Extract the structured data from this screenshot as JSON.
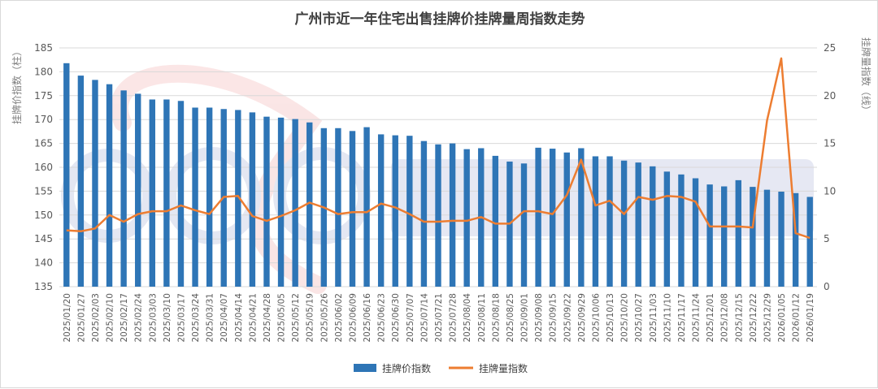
{
  "chart_data": {
    "type": "bar+line",
    "title": "广州市近一年住宅出售挂牌价挂牌量周指数走势",
    "ylabel_left": "挂牌价指数（柱）",
    "ylabel_right": "挂牌量指数（线）",
    "ylim_left": [
      135,
      185
    ],
    "ylim_right": [
      0,
      25
    ],
    "yticks_left": [
      "135",
      "140",
      "145",
      "150",
      "155",
      "160",
      "165",
      "170",
      "175",
      "180",
      "185"
    ],
    "yticks_right": [
      "0",
      "5",
      "10",
      "15",
      "20",
      "25"
    ],
    "grid": true,
    "legend_position": "bottom",
    "categories": [
      "2025/01/20",
      "2025/01/27",
      "2025/02/03",
      "2025/02/10",
      "2025/02/17",
      "2025/02/24",
      "2025/03/03",
      "2025/03/10",
      "2025/03/17",
      "2025/03/24",
      "2025/03/31",
      "2025/04/07",
      "2025/04/14",
      "2025/04/21",
      "2025/04/28",
      "2025/05/05",
      "2025/05/12",
      "2025/05/19",
      "2025/05/26",
      "2025/06/02",
      "2025/06/09",
      "2025/06/16",
      "2025/06/23",
      "2025/06/30",
      "2025/07/07",
      "2025/07/14",
      "2025/07/21",
      "2025/07/28",
      "2025/08/04",
      "2025/08/11",
      "2025/08/18",
      "2025/08/25",
      "2025/09/01",
      "2025/09/08",
      "2025/09/15",
      "2025/09/22",
      "2025/09/29",
      "2025/10/06",
      "2025/10/13",
      "2025/10/20",
      "2025/10/27",
      "2025/11/03",
      "2025/11/10",
      "2025/11/17",
      "2025/11/24",
      "2025/12/01",
      "2025/12/08",
      "2025/12/15",
      "2025/12/22",
      "2025/12/29",
      "2026/01/05",
      "2026/01/12",
      "2026/01/19"
    ],
    "series": [
      {
        "name": "挂牌价指数",
        "kind": "bar",
        "axis": "left",
        "color": "#2e75b6",
        "values": [
          181.8,
          179.2,
          178.3,
          177.4,
          176.1,
          175.4,
          174.2,
          174.2,
          173.9,
          172.5,
          172.5,
          172.2,
          172.0,
          171.5,
          170.6,
          170.4,
          170.1,
          169.4,
          168.2,
          168.2,
          167.6,
          168.4,
          166.9,
          166.7,
          166.6,
          165.5,
          164.8,
          165.0,
          163.8,
          164.0,
          162.4,
          161.2,
          160.8,
          164.1,
          163.9,
          163.1,
          164.0,
          162.3,
          162.3,
          161.4,
          161.0,
          160.2,
          159.1,
          158.5,
          157.7,
          156.4,
          156.0,
          157.3,
          155.9,
          155.3,
          154.9,
          154.6,
          153.8
        ]
      },
      {
        "name": "挂牌量指数",
        "kind": "line",
        "axis": "right",
        "color": "#ed7d31",
        "values": [
          5.9,
          5.8,
          6.1,
          7.5,
          6.8,
          7.6,
          7.9,
          7.9,
          8.5,
          8.0,
          7.6,
          9.4,
          9.5,
          7.4,
          6.9,
          7.4,
          8.0,
          8.8,
          8.3,
          7.6,
          7.8,
          7.8,
          8.7,
          8.3,
          7.6,
          6.8,
          6.8,
          6.9,
          6.9,
          7.3,
          6.6,
          6.6,
          7.9,
          7.9,
          7.6,
          9.6,
          13.3,
          8.5,
          9.0,
          7.6,
          9.4,
          9.1,
          9.5,
          9.4,
          8.9,
          6.3,
          6.3,
          6.3,
          6.2,
          17.4,
          23.9,
          5.6,
          5.1
        ]
      }
    ]
  }
}
